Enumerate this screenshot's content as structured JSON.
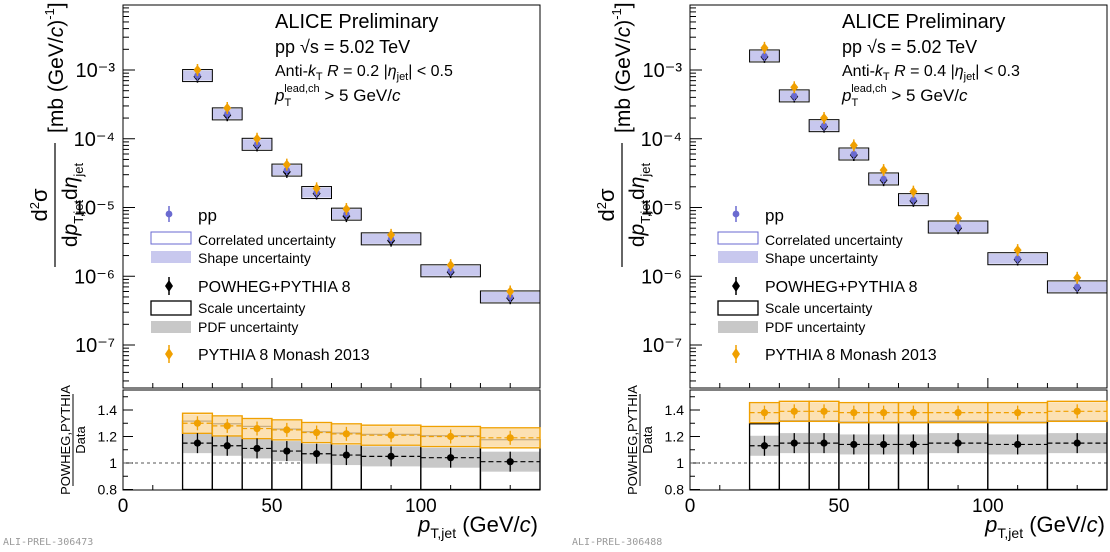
{
  "footer_ids": [
    "ALI-PREL-306473",
    "ALI-PREL-306488"
  ],
  "colors": {
    "pp": "#6a6ad0",
    "pp_shape": "#c8c8ee",
    "powheg": "#000000",
    "pdf": "#c8c8c8",
    "pythia": "#f0a000",
    "pythia_band": "#fbd9a0"
  },
  "chart_data": [
    {
      "type": "scatter",
      "title": "ALICE Preliminary",
      "subtitle_lines": [
        "pp  √s = 5.02 TeV",
        "Anti-kT  R = 0.2  |ηjet| < 0.5",
        "pTlead,ch > 5 GeV/c"
      ],
      "xlabel": "pT,jet (GeV/c)",
      "ylabel": "d²σ/dpT,jet dηjet [mb (GeV/c)⁻¹]",
      "ratio_ylabel": "POWHEG,PYTHIA / Data",
      "xlim": [
        0,
        140
      ],
      "ylim": [
        2e-08,
        0.01
      ],
      "yscale": "log",
      "ratio_ylim": [
        0.8,
        1.6
      ],
      "x_ticks": [
        "0",
        "50",
        "100"
      ],
      "y_ticks": [
        "10⁻³",
        "10⁻⁴",
        "10⁻⁵",
        "10⁻⁶",
        "10⁻⁷"
      ],
      "ratio_ticks": [
        "0.8",
        "1",
        "1.2",
        "1.4"
      ],
      "legend": [
        "pp",
        "Correlated uncertainty",
        "Shape uncertainty",
        "POWHEG+PYTHIA 8",
        "Scale uncertainty",
        "PDF uncertainty",
        "PYTHIA 8 Monash 2013"
      ],
      "bins": [
        [
          20,
          30
        ],
        [
          30,
          40
        ],
        [
          40,
          50
        ],
        [
          50,
          60
        ],
        [
          60,
          70
        ],
        [
          70,
          80
        ],
        [
          80,
          100
        ],
        [
          100,
          120
        ],
        [
          120,
          140
        ]
      ],
      "series": [
        {
          "name": "pp",
          "x": [
            25,
            35,
            45,
            55,
            65,
            75,
            90,
            110,
            130
          ],
          "y": [
            0.00083,
            0.00023,
            8.3e-05,
            3.5e-05,
            1.65e-05,
            8e-06,
            3.5e-06,
            1.2e-06,
            5e-07
          ]
        },
        {
          "name": "POWHEG+PYTHIA 8",
          "x": [
            25,
            35,
            45,
            55,
            65,
            75,
            90,
            110,
            130
          ],
          "y": [
            0.0008,
            0.00022,
            8e-05,
            3.3e-05,
            1.6e-05,
            7.5e-06,
            3.3e-06,
            1.15e-06,
            4.8e-07
          ]
        },
        {
          "name": "PYTHIA 8 Monash 2013",
          "x": [
            25,
            35,
            45,
            55,
            65,
            75,
            90,
            110,
            130
          ],
          "y": [
            0.001,
            0.00028,
            0.0001,
            4.2e-05,
            1.9e-05,
            9.5e-06,
            4e-06,
            1.45e-06,
            6e-07
          ]
        }
      ],
      "ratio_series": [
        {
          "name": "POWHEG+PYTHIA 8",
          "y": [
            1.15,
            1.13,
            1.11,
            1.09,
            1.07,
            1.06,
            1.05,
            1.04,
            1.01
          ]
        },
        {
          "name": "PYTHIA 8 Monash 2013",
          "y": [
            1.3,
            1.28,
            1.26,
            1.25,
            1.23,
            1.22,
            1.21,
            1.2,
            1.19
          ]
        }
      ]
    },
    {
      "type": "scatter",
      "title": "ALICE Preliminary",
      "subtitle_lines": [
        "pp  √s = 5.02 TeV",
        "Anti-kT  R = 0.4  |ηjet| < 0.3",
        "pTlead,ch > 5 GeV/c"
      ],
      "xlabel": "pT,jet (GeV/c)",
      "ylabel": "d²σ/dpT,jet dηjet [mb (GeV/c)⁻¹]",
      "ratio_ylabel": "POWHEG,PYTHIA / Data",
      "xlim": [
        0,
        140
      ],
      "ylim": [
        2e-08,
        0.01
      ],
      "yscale": "log",
      "ratio_ylim": [
        0.8,
        1.6
      ],
      "x_ticks": [
        "0",
        "50",
        "100"
      ],
      "y_ticks": [
        "10⁻³",
        "10⁻⁴",
        "10⁻⁵",
        "10⁻⁶",
        "10⁻⁷"
      ],
      "ratio_ticks": [
        "0.8",
        "1",
        "1.2",
        "1.4"
      ],
      "legend": [
        "pp",
        "Correlated uncertainty",
        "Shape uncertainty",
        "POWHEG+PYTHIA 8",
        "Scale uncertainty",
        "PDF uncertainty",
        "PYTHIA 8 Monash 2013"
      ],
      "bins": [
        [
          20,
          30
        ],
        [
          30,
          40
        ],
        [
          40,
          50
        ],
        [
          50,
          60
        ],
        [
          60,
          70
        ],
        [
          70,
          80
        ],
        [
          80,
          100
        ],
        [
          100,
          120
        ],
        [
          120,
          140
        ]
      ],
      "series": [
        {
          "name": "pp",
          "x": [
            25,
            35,
            45,
            55,
            65,
            75,
            90,
            110,
            130
          ],
          "y": [
            0.0016,
            0.00042,
            0.000155,
            6e-05,
            2.6e-05,
            1.3e-05,
            5.2e-06,
            1.8e-06,
            7e-07
          ]
        },
        {
          "name": "POWHEG+PYTHIA 8",
          "x": [
            25,
            35,
            45,
            55,
            65,
            75,
            90,
            110,
            130
          ],
          "y": [
            0.00155,
            0.00041,
            0.00015,
            5.8e-05,
            2.5e-05,
            1.25e-05,
            5e-06,
            1.75e-06,
            6.8e-07
          ]
        },
        {
          "name": "PYTHIA 8 Monash 2013",
          "x": [
            25,
            35,
            45,
            55,
            65,
            75,
            90,
            110,
            130
          ],
          "y": [
            0.0021,
            0.00056,
            0.0002,
            8e-05,
            3.5e-05,
            1.7e-05,
            7e-06,
            2.4e-06,
            9.5e-07
          ]
        }
      ],
      "ratio_series": [
        {
          "name": "POWHEG+PYTHIA 8",
          "y": [
            1.13,
            1.15,
            1.15,
            1.14,
            1.14,
            1.14,
            1.15,
            1.14,
            1.15
          ]
        },
        {
          "name": "PYTHIA 8 Monash 2013",
          "y": [
            1.38,
            1.39,
            1.39,
            1.38,
            1.38,
            1.38,
            1.38,
            1.38,
            1.39
          ]
        }
      ]
    }
  ]
}
